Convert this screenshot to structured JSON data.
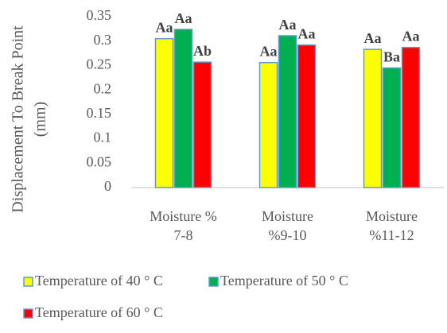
{
  "chart_data": {
    "type": "bar",
    "title": "",
    "ylabel_lines": [
      "Displacement To Break Point",
      "(mm)"
    ],
    "xlabel": "",
    "categories": [
      [
        "Moisture %",
        "7-8"
      ],
      [
        "Moisture",
        "%9-10"
      ],
      [
        "Moisture",
        "%11-12"
      ]
    ],
    "ylim": [
      0,
      0.35
    ],
    "yticks": [
      "0",
      "0.05",
      "0.1",
      "0.15",
      "0.2",
      "0.25",
      "0.3",
      "0.35"
    ],
    "grid": false,
    "legend_position": "bottom",
    "series": [
      {
        "name": "Temperature of 40 ° C",
        "color": "#ffff00",
        "values": [
          0.305,
          0.256,
          0.283
        ],
        "labels": [
          "Aa",
          "Aa",
          "Aa"
        ]
      },
      {
        "name": "Temperature of 50 ° C",
        "color": "#00b050",
        "values": [
          0.324,
          0.311,
          0.245
        ],
        "labels": [
          "Aa",
          "Aa",
          "Ba"
        ]
      },
      {
        "name": "Temperature of 60 ° C",
        "color": "#ff0000",
        "values": [
          0.257,
          0.292,
          0.287
        ],
        "labels": [
          "Ab",
          "Aa",
          "Aa"
        ]
      }
    ],
    "bar_outline_color": "#5b9bd5"
  }
}
